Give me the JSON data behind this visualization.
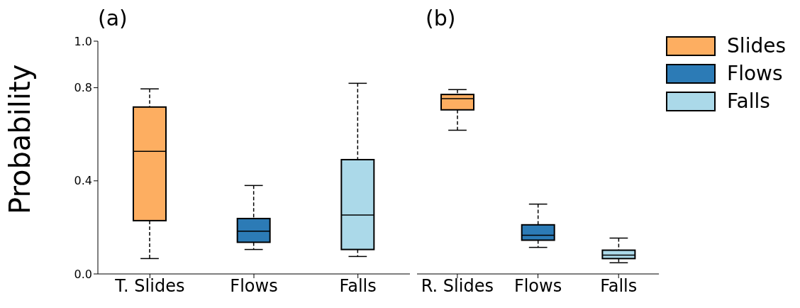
{
  "chart_data": [
    {
      "type": "box",
      "title": "(a)",
      "ylabel": "Probability",
      "categories": [
        "T. Slides",
        "Flows",
        "Falls"
      ],
      "ylim": [
        0,
        1
      ],
      "yticks": [
        {
          "value": 0,
          "label": "0.0"
        },
        {
          "value": 0.4,
          "label": "0.4"
        },
        {
          "value": 0.8,
          "label": "0.8"
        },
        {
          "value": 1,
          "label": "1.0"
        }
      ],
      "series": [
        {
          "color": "#fdae61",
          "boxes": [
            {
              "low": 0.066,
              "q1": 0.229,
              "median": 0.527,
              "q3": 0.717,
              "high": 0.795
            },
            null,
            null
          ]
        },
        {
          "color": "#2c7bb6",
          "boxes": [
            null,
            {
              "low": 0.105,
              "q1": 0.136,
              "median": 0.184,
              "q3": 0.238,
              "high": 0.38
            },
            null
          ]
        },
        {
          "color": "#abd9e9",
          "boxes": [
            null,
            null,
            {
              "low": 0.075,
              "q1": 0.105,
              "median": 0.253,
              "q3": 0.491,
              "high": 0.819
            }
          ]
        }
      ]
    },
    {
      "type": "box",
      "title": "(b)",
      "categories": [
        "R. Slides",
        "Flows",
        "Falls"
      ],
      "ylim": [
        0,
        1
      ],
      "tick_labels": "x",
      "legend": "top right",
      "series": [
        {
          "name": "Slides",
          "color": "#fdae61",
          "boxes": [
            {
              "low": 0.617,
              "q1": 0.705,
              "median": 0.753,
              "q3": 0.771,
              "high": 0.792
            },
            null,
            null
          ]
        },
        {
          "name": "Flows",
          "color": "#2c7bb6",
          "boxes": [
            null,
            {
              "low": 0.114,
              "q1": 0.145,
              "median": 0.166,
              "q3": 0.211,
              "high": 0.3
            },
            null
          ]
        },
        {
          "name": "Falls",
          "color": "#abd9e9",
          "boxes": [
            null,
            null,
            {
              "low": 0.048,
              "q1": 0.066,
              "median": 0.081,
              "q3": 0.102,
              "high": 0.154
            }
          ]
        }
      ]
    }
  ]
}
